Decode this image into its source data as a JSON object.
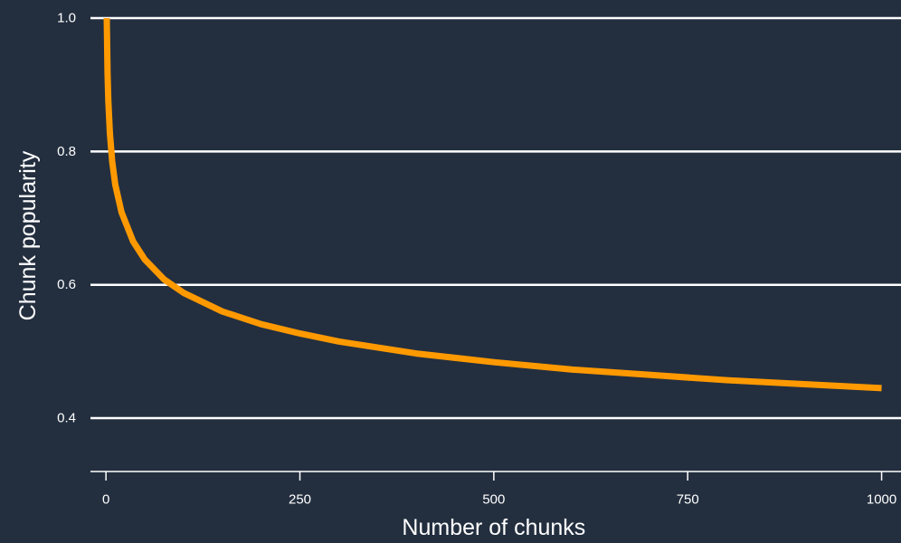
{
  "chart_data": {
    "type": "line",
    "title": "",
    "xlabel": "Number of chunks",
    "ylabel": "Chunk popularity",
    "xlim": [
      -20,
      1025
    ],
    "ylim": [
      0.32,
      1.0
    ],
    "x_ticks": [
      0,
      250,
      500,
      750,
      1000
    ],
    "x_tick_labels": [
      "0",
      "250",
      "500",
      "750",
      "1000"
    ],
    "y_ticks": [
      0.4,
      0.6,
      0.8,
      1.0
    ],
    "y_tick_labels": [
      "0.4",
      "0.6",
      "0.8",
      "1.0"
    ],
    "grid": "horizontal",
    "legend": "none",
    "series": [
      {
        "x": [
          1,
          2,
          3,
          5,
          8,
          12,
          20,
          35,
          50,
          75,
          100,
          150,
          200,
          250,
          300,
          400,
          500,
          600,
          700,
          800,
          900,
          1000
        ],
        "y": [
          1.0,
          0.919,
          0.877,
          0.828,
          0.785,
          0.75,
          0.709,
          0.665,
          0.638,
          0.608,
          0.588,
          0.56,
          0.541,
          0.527,
          0.515,
          0.497,
          0.484,
          0.473,
          0.465,
          0.457,
          0.451,
          0.445
        ]
      }
    ],
    "colors": {
      "background": "#232f3f",
      "grid": "#ffffff",
      "axis": "#ffffff",
      "text": "#ffffff",
      "line": "#ff9900"
    }
  }
}
